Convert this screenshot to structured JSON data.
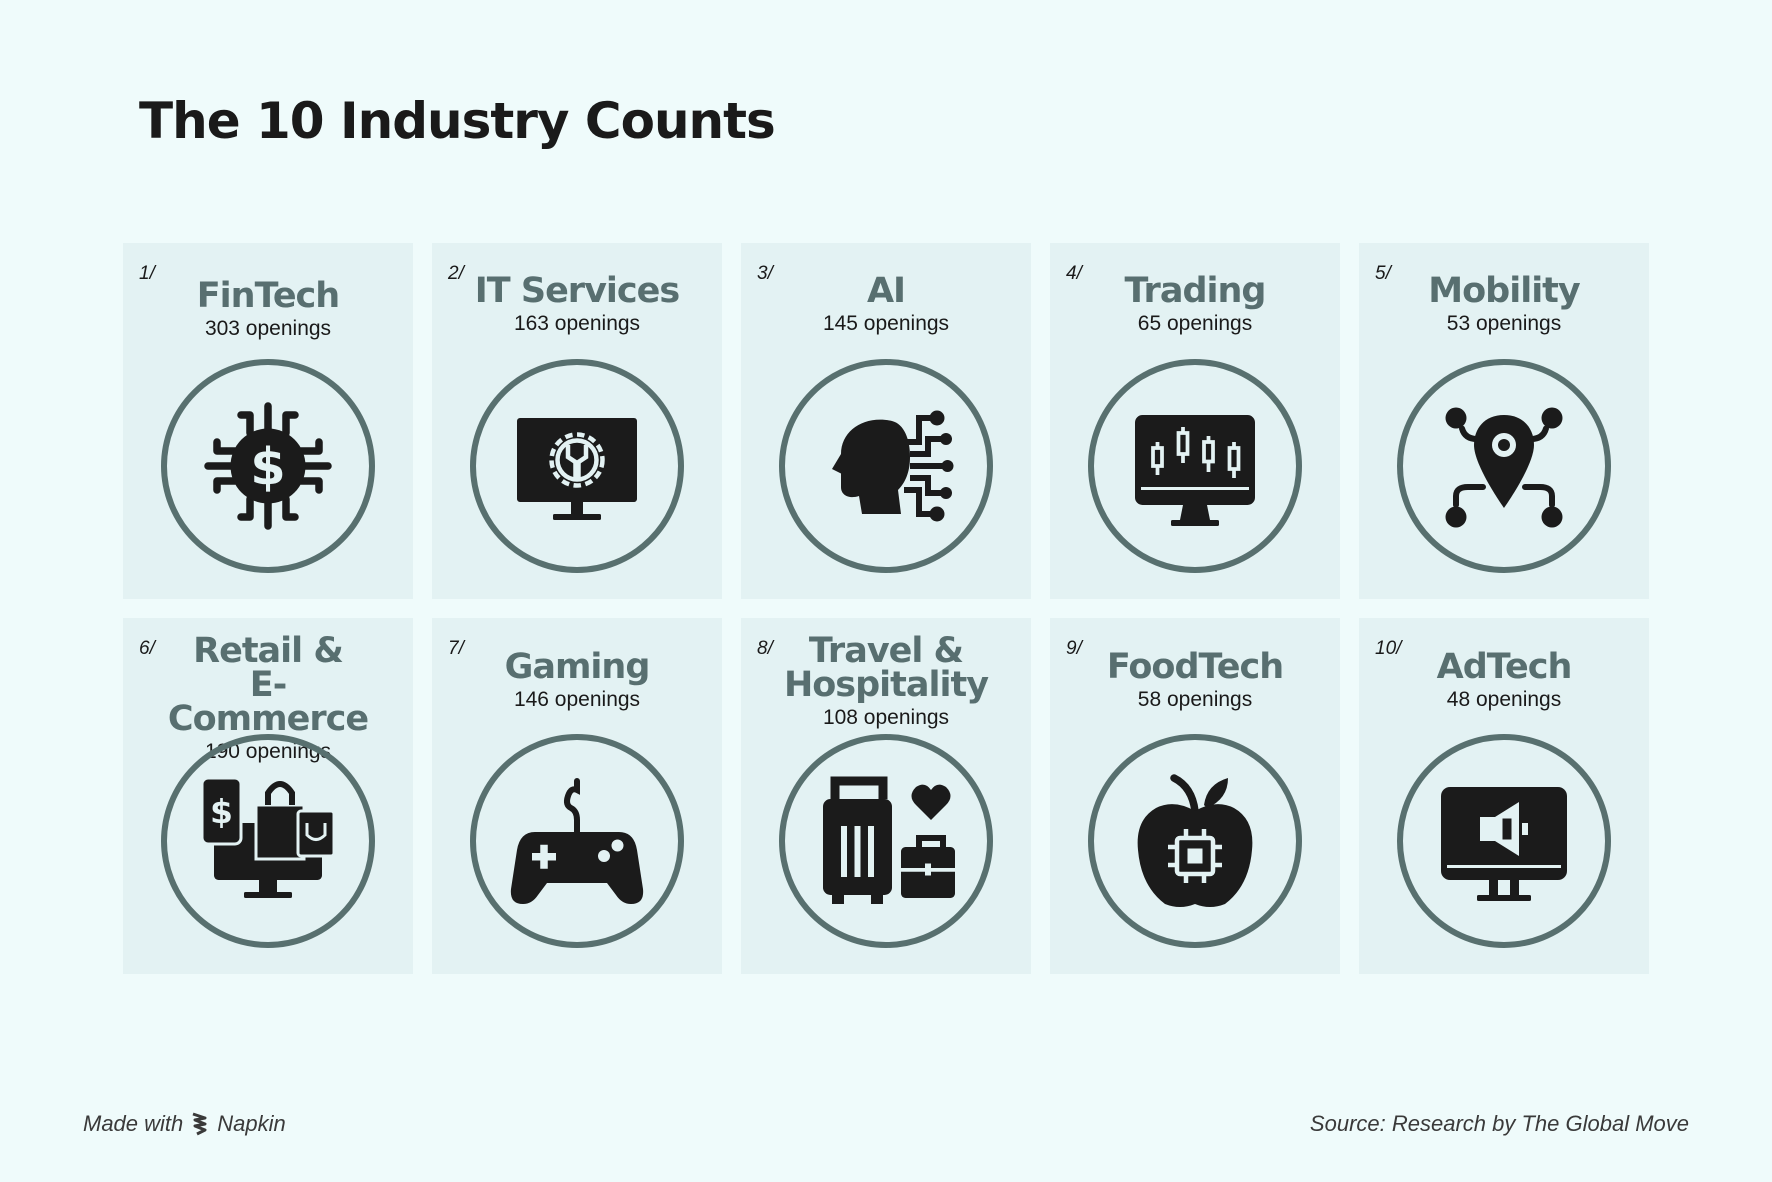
{
  "title": "The 10 Industry Counts",
  "footer": {
    "made_with": "Made with",
    "brand": "Napkin",
    "source": "Source: Research by The Global Move"
  },
  "colors": {
    "background": "#effbfb",
    "card": "#e3f2f3",
    "heading": "#586f70",
    "ring": "#58706f",
    "icon": "#1b1b1b"
  },
  "industries": [
    {
      "num": "1/",
      "name": "FinTech",
      "count": "303 openings",
      "icon": "dollar-chip-icon"
    },
    {
      "num": "2/",
      "name": "IT Services",
      "count": "163 openings",
      "icon": "monitor-gear-wrench-icon"
    },
    {
      "num": "3/",
      "name": "AI",
      "count": "145 openings",
      "icon": "ai-head-circuit-icon"
    },
    {
      "num": "4/",
      "name": "Trading",
      "count": "65 openings",
      "icon": "monitor-candlestick-icon"
    },
    {
      "num": "5/",
      "name": "Mobility",
      "count": "53 openings",
      "icon": "location-network-icon"
    },
    {
      "num": "6/",
      "name": "Retail &\nE-Commerce",
      "count": "190 openings",
      "icon": "ecommerce-monitor-icon"
    },
    {
      "num": "7/",
      "name": "Gaming",
      "count": "146 openings",
      "icon": "gamepad-icon"
    },
    {
      "num": "8/",
      "name": "Travel &\nHospitality",
      "count": "108 openings",
      "icon": "luggage-heart-icon"
    },
    {
      "num": "9/",
      "name": "FoodTech",
      "count": "58 openings",
      "icon": "apple-chip-icon"
    },
    {
      "num": "10/",
      "name": "AdTech",
      "count": "48 openings",
      "icon": "monitor-megaphone-icon"
    }
  ]
}
